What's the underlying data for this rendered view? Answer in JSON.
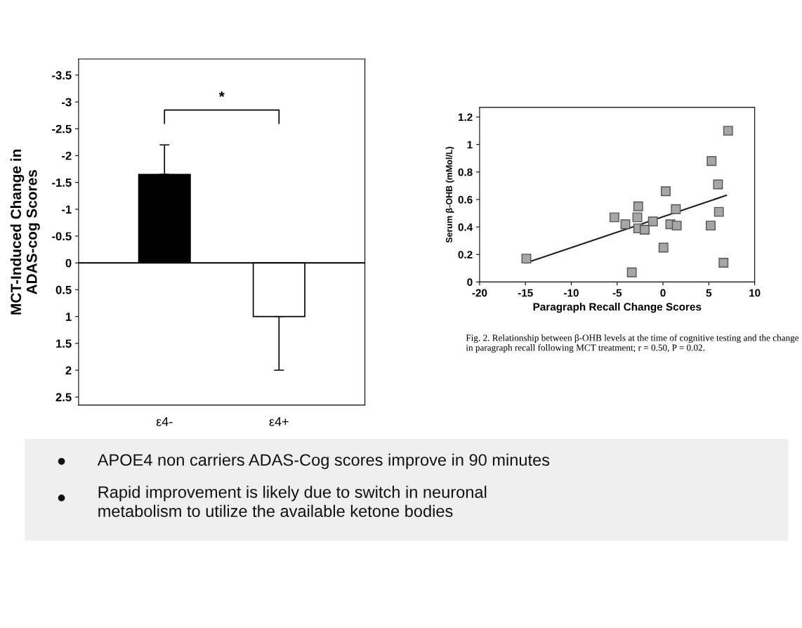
{
  "chart_data": [
    {
      "type": "bar",
      "ylabel": "MCT-Induced Change in\nADAS-cog Scores",
      "categories": [
        "ε4-",
        "ε4+"
      ],
      "values": [
        -1.65,
        1.0
      ],
      "colors": [
        "#000000",
        "#ffffff"
      ],
      "errors": [
        [
          -2.2,
          -1.65
        ],
        [
          1.0,
          2.0
        ]
      ],
      "ylim": [
        2.65,
        -3.8
      ],
      "yticks": [
        -3.5,
        -3,
        -2.5,
        -2,
        -1.5,
        -1,
        -0.5,
        0,
        0.5,
        1,
        1.5,
        2,
        2.5
      ],
      "annotations": [
        "*"
      ],
      "ref_lines": [
        {
          "axis": "y",
          "value": 0,
          "color": "#000000"
        }
      ],
      "grid": false
    },
    {
      "type": "scatter",
      "xlabel": "Paragraph Recall Change Scores",
      "ylabel": "Serum β-OHB (mMol/L)",
      "xlim": [
        -20,
        10
      ],
      "xticks": [
        -20,
        -15,
        -10,
        -5,
        0,
        5,
        10
      ],
      "ylim": [
        0,
        1.27
      ],
      "yticks": [
        0,
        0.2,
        0.4,
        0.6,
        0.8,
        1,
        1.2
      ],
      "grid": false,
      "marker": "square",
      "series": [
        {
          "color": "#a6a6a6",
          "x": [
            -14.9,
            -5.3,
            -4.1,
            -2.7,
            -2.8,
            -2.7,
            -2.0,
            -1.1,
            -3.4,
            0.3,
            0.05,
            0.8,
            1.5,
            1.4,
            5.2,
            5.3,
            6.0,
            6.1,
            6.6,
            7.1
          ],
          "values": [
            0.17,
            0.47,
            0.42,
            0.55,
            0.47,
            0.39,
            0.38,
            0.44,
            0.07,
            0.66,
            0.25,
            0.42,
            0.41,
            0.53,
            0.41,
            0.88,
            0.71,
            0.51,
            0.14,
            1.1
          ]
        },
        {
          "type": "line",
          "marker": "none",
          "color": "#222222",
          "x": [
            -14.9,
            6.9
          ],
          "values": [
            0.14,
            0.63
          ]
        }
      ],
      "annotations": [
        "Fig. 2. Relationship between β-OHB levels at the time of cognitive testing and the change in paragraph recall following MCT treatment; r = 0.50, P = 0.02."
      ]
    },
    {
      "type": "other",
      "annotations": [
        "APOE4 non carriers ADAS-Cog scores improve in 90 minutes",
        "Rapid improvement is likely due to switch in neuronal\nmetabolism to utilize the available ketone bodies"
      ]
    }
  ]
}
